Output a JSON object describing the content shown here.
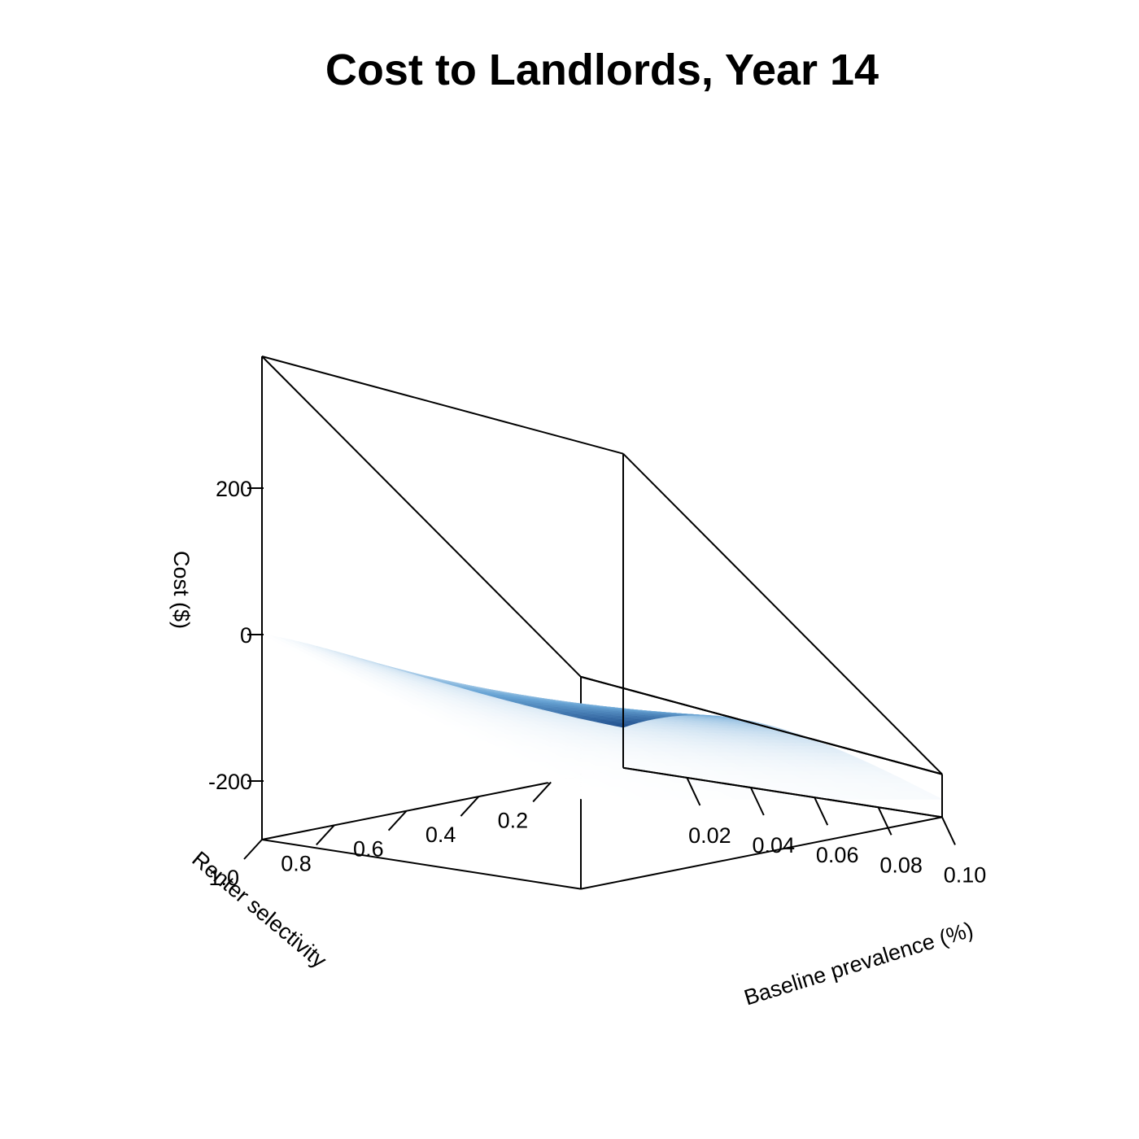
{
  "chart_data": {
    "type": "surface",
    "title": "Cost to Landlords, Year 14",
    "xlabel": "Baseline prevalence (%)",
    "ylabel": "Renter selectivity",
    "zlabel": "Cost ($)",
    "xlim": [
      0.0,
      0.1
    ],
    "ylim": [
      0.0,
      1.0
    ],
    "zlim": [
      -280,
      380
    ],
    "xticks": [
      {
        "value": 0.02,
        "label": "0.02"
      },
      {
        "value": 0.04,
        "label": "0.04"
      },
      {
        "value": 0.06,
        "label": "0.06"
      },
      {
        "value": 0.08,
        "label": "0.08"
      },
      {
        "value": 0.1,
        "label": "0.10"
      }
    ],
    "yticks": [
      {
        "value": 0.2,
        "label": "0.2"
      },
      {
        "value": 0.4,
        "label": "0.4"
      },
      {
        "value": 0.6,
        "label": "0.6"
      },
      {
        "value": 0.8,
        "label": "0.8"
      },
      {
        "value": 1.0,
        "label": "1.0"
      }
    ],
    "zticks": [
      {
        "value": -200,
        "label": "-200"
      },
      {
        "value": 0,
        "label": "0"
      },
      {
        "value": 200,
        "label": "200"
      }
    ],
    "surface_extremes": [
      {
        "x": 0.0,
        "y": 0.0,
        "z": -195
      },
      {
        "x": 0.1,
        "y": 0.0,
        "z": -5
      },
      {
        "x": 0.0,
        "y": 1.0,
        "z": 0
      },
      {
        "x": 0.1,
        "y": 1.0,
        "z": 0
      }
    ],
    "colors": {
      "low": "#1f4e8c",
      "mid": "#6aa6d6",
      "high": "#ffffff"
    },
    "grid": false,
    "legend": "none"
  }
}
